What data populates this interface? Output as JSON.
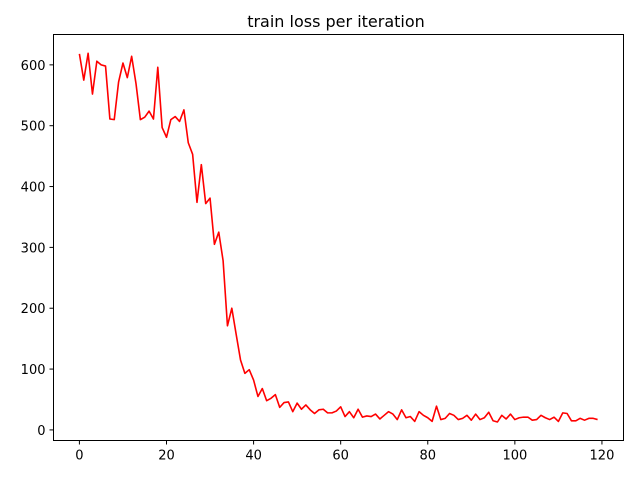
{
  "chart_data": {
    "type": "line",
    "title": "train loss per iteration",
    "xlabel": "",
    "ylabel": "",
    "xlim": [
      -5.95,
      124.95
    ],
    "ylim": [
      -17.4,
      649.9
    ],
    "xticks": [
      0,
      20,
      40,
      60,
      80,
      100,
      120
    ],
    "yticks": [
      0,
      100,
      200,
      300,
      400,
      500,
      600
    ],
    "grid": false,
    "legend": "none",
    "series": [
      {
        "color": "#ff0000",
        "x": [
          0,
          1,
          2,
          3,
          4,
          5,
          6,
          7,
          8,
          9,
          10,
          11,
          12,
          13,
          14,
          15,
          16,
          17,
          18,
          19,
          20,
          21,
          22,
          23,
          24,
          25,
          26,
          27,
          28,
          29,
          30,
          31,
          32,
          33,
          34,
          35,
          36,
          37,
          38,
          39,
          40,
          41,
          42,
          43,
          44,
          45,
          46,
          47,
          48,
          49,
          50,
          51,
          52,
          53,
          54,
          55,
          56,
          57,
          58,
          59,
          60,
          61,
          62,
          63,
          64,
          65,
          66,
          67,
          68,
          69,
          70,
          71,
          72,
          73,
          74,
          75,
          76,
          77,
          78,
          79,
          80,
          81,
          82,
          83,
          84,
          85,
          86,
          87,
          88,
          89,
          90,
          91,
          92,
          93,
          94,
          95,
          96,
          97,
          98,
          99,
          100,
          101,
          102,
          103,
          104,
          105,
          106,
          107,
          108,
          109,
          110,
          111,
          112,
          113,
          114,
          115,
          116,
          117,
          118,
          119
        ],
        "values": [
          618,
          575,
          619,
          552,
          606,
          600,
          598,
          511,
          510,
          572,
          603,
          579,
          614,
          569,
          510,
          514,
          524,
          511,
          596,
          497,
          481,
          510,
          515,
          507,
          526,
          472,
          453,
          374,
          436,
          372,
          381,
          305,
          325,
          278,
          171,
          200,
          157,
          115,
          93,
          99,
          82,
          55,
          68,
          48,
          52,
          58,
          37,
          45,
          46,
          30,
          44,
          34,
          41,
          33,
          27,
          33,
          34,
          28,
          28,
          31,
          38,
          22,
          30,
          20,
          34,
          21,
          23,
          22,
          26,
          18,
          24,
          30,
          26,
          17,
          33,
          20,
          22,
          14,
          30,
          24,
          20,
          14,
          39,
          17,
          19,
          27,
          24,
          17,
          19,
          24,
          16,
          26,
          17,
          20,
          29,
          15,
          13,
          24,
          18,
          26,
          17,
          20,
          21,
          21,
          16,
          17,
          24,
          20,
          17,
          21,
          14,
          28,
          27,
          15,
          15,
          19,
          16,
          19,
          19,
          17
        ]
      }
    ]
  }
}
